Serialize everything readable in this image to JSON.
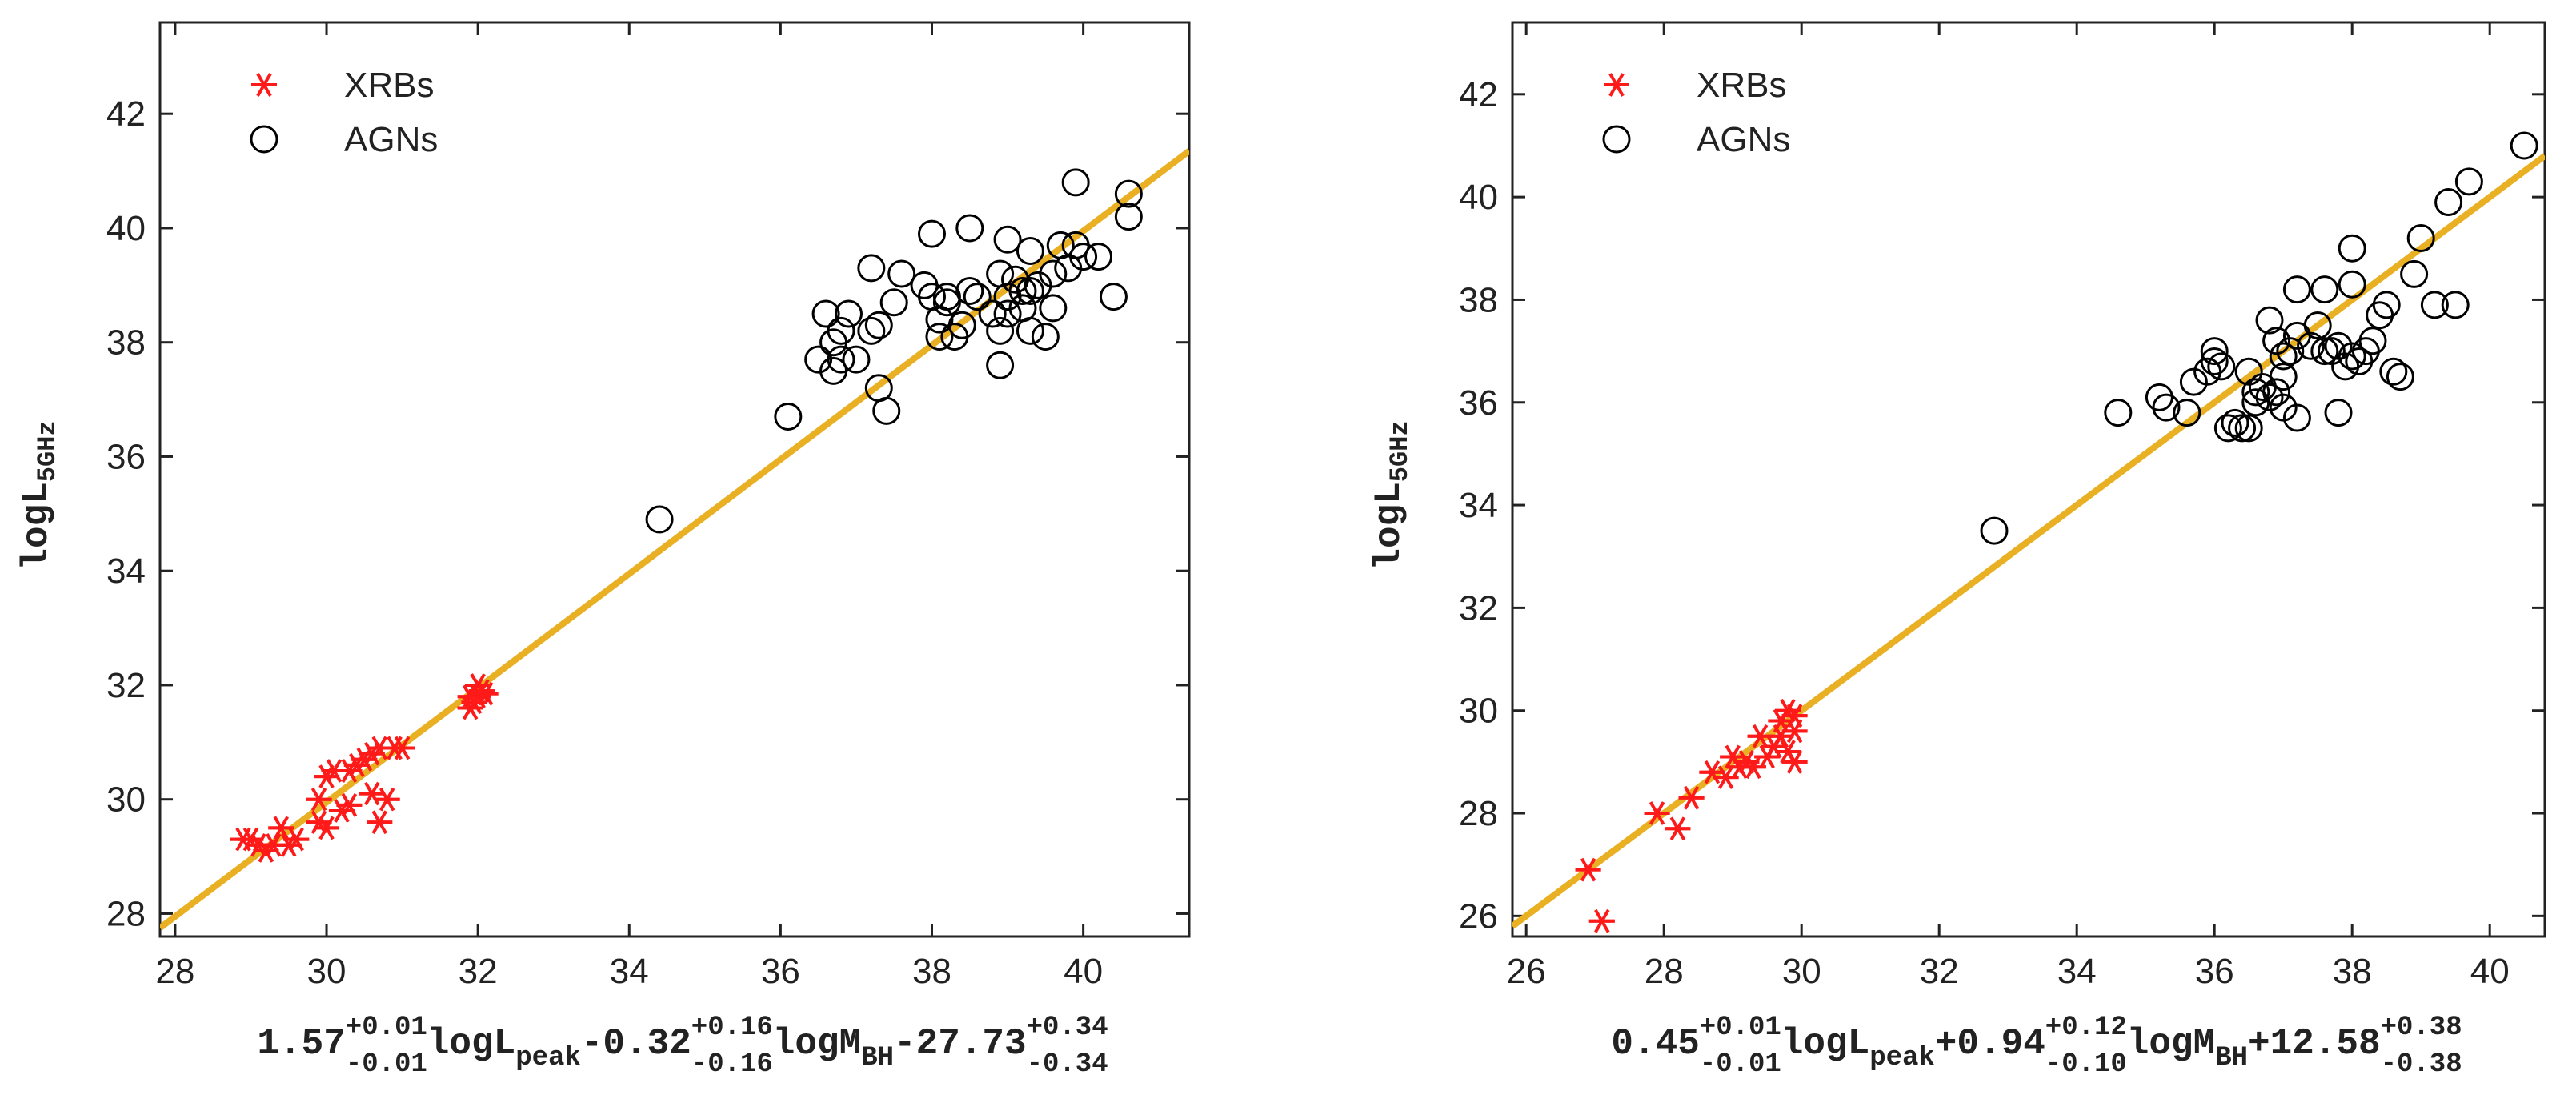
{
  "colors": {
    "xrb": "#ff1a1a",
    "agn": "#000000",
    "fit": "#e8b022",
    "axis": "#222222"
  },
  "chart_data": [
    {
      "type": "scatter",
      "title": "",
      "ylabel": {
        "main": "logL",
        "sub": "5GHz"
      },
      "xlabel": [
        {
          "t": "1.57",
          "role": "base"
        },
        {
          "t": "+0.01",
          "role": "sup"
        },
        {
          "t": "-0.01",
          "role": "sub"
        },
        {
          "t": "logL",
          "role": "base"
        },
        {
          "t": "peak",
          "role": "lowsub"
        },
        {
          "t": "-0.32",
          "role": "base"
        },
        {
          "t": "+0.16",
          "role": "sup"
        },
        {
          "t": "-0.16",
          "role": "sub"
        },
        {
          "t": "logM",
          "role": "base"
        },
        {
          "t": "BH",
          "role": "lowsub"
        },
        {
          "t": "-27.73",
          "role": "base"
        },
        {
          "t": "+0.34",
          "role": "sup"
        },
        {
          "t": "-0.34",
          "role": "sub"
        }
      ],
      "xlim": [
        27.8,
        41.4
      ],
      "ylim": [
        27.6,
        43.6
      ],
      "xticks": [
        28,
        30,
        32,
        34,
        36,
        38,
        40
      ],
      "yticks": [
        28,
        30,
        32,
        34,
        36,
        38,
        40,
        42
      ],
      "legend": {
        "position": "top-left",
        "entries": [
          "XRBs",
          "AGNs"
        ]
      },
      "fit_line": {
        "x": [
          27.8,
          41.4
        ],
        "y": [
          27.75,
          41.35
        ]
      },
      "series": [
        {
          "name": "XRBs",
          "marker": "asterisk",
          "points": [
            [
              28.9,
              29.3
            ],
            [
              29.0,
              29.3
            ],
            [
              29.1,
              29.2
            ],
            [
              29.2,
              29.1
            ],
            [
              29.3,
              29.2
            ],
            [
              29.4,
              29.5
            ],
            [
              29.5,
              29.2
            ],
            [
              29.6,
              29.3
            ],
            [
              29.9,
              30.0
            ],
            [
              29.9,
              29.6
            ],
            [
              30.0,
              29.5
            ],
            [
              30.0,
              30.4
            ],
            [
              30.1,
              30.5
            ],
            [
              30.2,
              29.8
            ],
            [
              30.3,
              30.5
            ],
            [
              30.3,
              29.9
            ],
            [
              30.4,
              30.6
            ],
            [
              30.5,
              30.7
            ],
            [
              30.6,
              30.1
            ],
            [
              30.6,
              30.8
            ],
            [
              30.7,
              29.6
            ],
            [
              30.7,
              30.9
            ],
            [
              30.8,
              30.0
            ],
            [
              30.9,
              30.9
            ],
            [
              31.0,
              30.9
            ],
            [
              31.9,
              31.6
            ],
            [
              31.9,
              31.8
            ],
            [
              31.95,
              31.7
            ],
            [
              32.0,
              31.8
            ],
            [
              32.0,
              32.0
            ],
            [
              32.05,
              31.9
            ],
            [
              32.1,
              31.85
            ]
          ]
        },
        {
          "name": "AGNs",
          "marker": "circle",
          "points": [
            [
              34.4,
              34.9
            ],
            [
              36.1,
              36.7
            ],
            [
              36.5,
              37.7
            ],
            [
              36.6,
              38.5
            ],
            [
              36.7,
              38.0
            ],
            [
              36.7,
              37.5
            ],
            [
              36.8,
              38.2
            ],
            [
              36.8,
              37.7
            ],
            [
              36.9,
              38.5
            ],
            [
              37.0,
              37.7
            ],
            [
              37.2,
              38.2
            ],
            [
              37.2,
              39.3
            ],
            [
              37.3,
              37.2
            ],
            [
              37.3,
              38.3
            ],
            [
              37.4,
              36.8
            ],
            [
              37.5,
              38.7
            ],
            [
              37.6,
              39.2
            ],
            [
              37.9,
              39.0
            ],
            [
              38.0,
              38.8
            ],
            [
              38.0,
              39.9
            ],
            [
              38.1,
              38.4
            ],
            [
              38.1,
              38.1
            ],
            [
              38.2,
              38.8
            ],
            [
              38.2,
              38.7
            ],
            [
              38.3,
              38.1
            ],
            [
              38.4,
              38.3
            ],
            [
              38.5,
              38.9
            ],
            [
              38.5,
              40.0
            ],
            [
              38.6,
              38.8
            ],
            [
              38.8,
              38.5
            ],
            [
              38.9,
              37.6
            ],
            [
              38.9,
              38.2
            ],
            [
              38.9,
              39.2
            ],
            [
              39.0,
              39.8
            ],
            [
              39.0,
              38.5
            ],
            [
              39.0,
              38.8
            ],
            [
              39.1,
              39.1
            ],
            [
              39.2,
              38.6
            ],
            [
              39.2,
              38.9
            ],
            [
              39.3,
              38.9
            ],
            [
              39.3,
              39.6
            ],
            [
              39.3,
              38.2
            ],
            [
              39.4,
              39.0
            ],
            [
              39.5,
              38.1
            ],
            [
              39.6,
              38.6
            ],
            [
              39.6,
              39.2
            ],
            [
              39.7,
              39.7
            ],
            [
              39.8,
              39.3
            ],
            [
              39.9,
              39.7
            ],
            [
              39.9,
              40.8
            ],
            [
              40.0,
              39.5
            ],
            [
              40.2,
              39.5
            ],
            [
              40.4,
              38.8
            ],
            [
              40.6,
              40.2
            ],
            [
              40.6,
              40.6
            ]
          ]
        }
      ]
    },
    {
      "type": "scatter",
      "title": "",
      "ylabel": {
        "main": "logL",
        "sub": "5GHz"
      },
      "xlabel": [
        {
          "t": "0.45",
          "role": "base"
        },
        {
          "t": "+0.01",
          "role": "sup"
        },
        {
          "t": "-0.01",
          "role": "sub"
        },
        {
          "t": "logL",
          "role": "base"
        },
        {
          "t": "peak",
          "role": "lowsub"
        },
        {
          "t": "+0.94",
          "role": "base"
        },
        {
          "t": "+0.12",
          "role": "sup"
        },
        {
          "t": "-0.10",
          "role": "sub"
        },
        {
          "t": "logM",
          "role": "base"
        },
        {
          "t": "BH",
          "role": "lowsub"
        },
        {
          "t": "+12.58",
          "role": "base"
        },
        {
          "t": "+0.38",
          "role": "sup"
        },
        {
          "t": "-0.38",
          "role": "sub"
        }
      ],
      "xlim": [
        25.8,
        40.8
      ],
      "ylim": [
        25.6,
        43.4
      ],
      "xticks": [
        26,
        28,
        30,
        32,
        34,
        36,
        38,
        40
      ],
      "yticks": [
        26,
        28,
        30,
        32,
        34,
        36,
        38,
        40,
        42
      ],
      "legend": {
        "position": "top-left",
        "entries": [
          "XRBs",
          "AGNs"
        ]
      },
      "fit_line": {
        "x": [
          25.8,
          40.8
        ],
        "y": [
          25.8,
          40.8
        ]
      },
      "series": [
        {
          "name": "XRBs",
          "marker": "asterisk",
          "points": [
            [
              26.9,
              26.9
            ],
            [
              27.1,
              25.9
            ],
            [
              27.9,
              28.0
            ],
            [
              28.2,
              27.7
            ],
            [
              28.4,
              28.3
            ],
            [
              28.7,
              28.8
            ],
            [
              28.9,
              28.7
            ],
            [
              29.0,
              29.1
            ],
            [
              29.1,
              28.9
            ],
            [
              29.2,
              29.0
            ],
            [
              29.3,
              28.9
            ],
            [
              29.4,
              29.5
            ],
            [
              29.5,
              29.1
            ],
            [
              29.6,
              29.3
            ],
            [
              29.7,
              29.8
            ],
            [
              29.7,
              29.5
            ],
            [
              29.8,
              30.0
            ],
            [
              29.8,
              29.2
            ],
            [
              29.9,
              29.0
            ],
            [
              29.9,
              29.6
            ],
            [
              29.9,
              29.9
            ]
          ]
        },
        {
          "name": "AGNs",
          "marker": "circle",
          "points": [
            [
              32.8,
              33.5
            ],
            [
              34.6,
              35.8
            ],
            [
              35.2,
              36.1
            ],
            [
              35.3,
              35.9
            ],
            [
              35.6,
              35.8
            ],
            [
              35.7,
              36.4
            ],
            [
              35.9,
              36.6
            ],
            [
              36.0,
              37.0
            ],
            [
              36.0,
              36.8
            ],
            [
              36.1,
              36.7
            ],
            [
              36.2,
              35.5
            ],
            [
              36.3,
              35.6
            ],
            [
              36.4,
              35.5
            ],
            [
              36.5,
              35.5
            ],
            [
              36.5,
              36.6
            ],
            [
              36.6,
              36.0
            ],
            [
              36.6,
              36.2
            ],
            [
              36.7,
              36.3
            ],
            [
              36.8,
              37.6
            ],
            [
              36.8,
              36.1
            ],
            [
              36.9,
              36.2
            ],
            [
              36.9,
              37.2
            ],
            [
              37.0,
              35.9
            ],
            [
              37.0,
              36.5
            ],
            [
              37.0,
              36.9
            ],
            [
              37.1,
              37.0
            ],
            [
              37.2,
              37.3
            ],
            [
              37.2,
              38.2
            ],
            [
              37.2,
              35.7
            ],
            [
              37.4,
              37.1
            ],
            [
              37.5,
              37.5
            ],
            [
              37.6,
              37.0
            ],
            [
              37.6,
              38.2
            ],
            [
              37.7,
              37.0
            ],
            [
              37.8,
              35.8
            ],
            [
              37.8,
              37.1
            ],
            [
              37.9,
              36.7
            ],
            [
              38.0,
              36.9
            ],
            [
              38.0,
              38.3
            ],
            [
              38.0,
              39.0
            ],
            [
              38.1,
              36.8
            ],
            [
              38.2,
              37.0
            ],
            [
              38.3,
              37.2
            ],
            [
              38.4,
              37.7
            ],
            [
              38.5,
              37.9
            ],
            [
              38.6,
              36.6
            ],
            [
              38.7,
              36.5
            ],
            [
              38.9,
              38.5
            ],
            [
              39.0,
              39.2
            ],
            [
              39.2,
              37.9
            ],
            [
              39.4,
              39.9
            ],
            [
              39.5,
              37.9
            ],
            [
              39.7,
              40.3
            ],
            [
              40.5,
              41.0
            ]
          ]
        }
      ]
    }
  ]
}
